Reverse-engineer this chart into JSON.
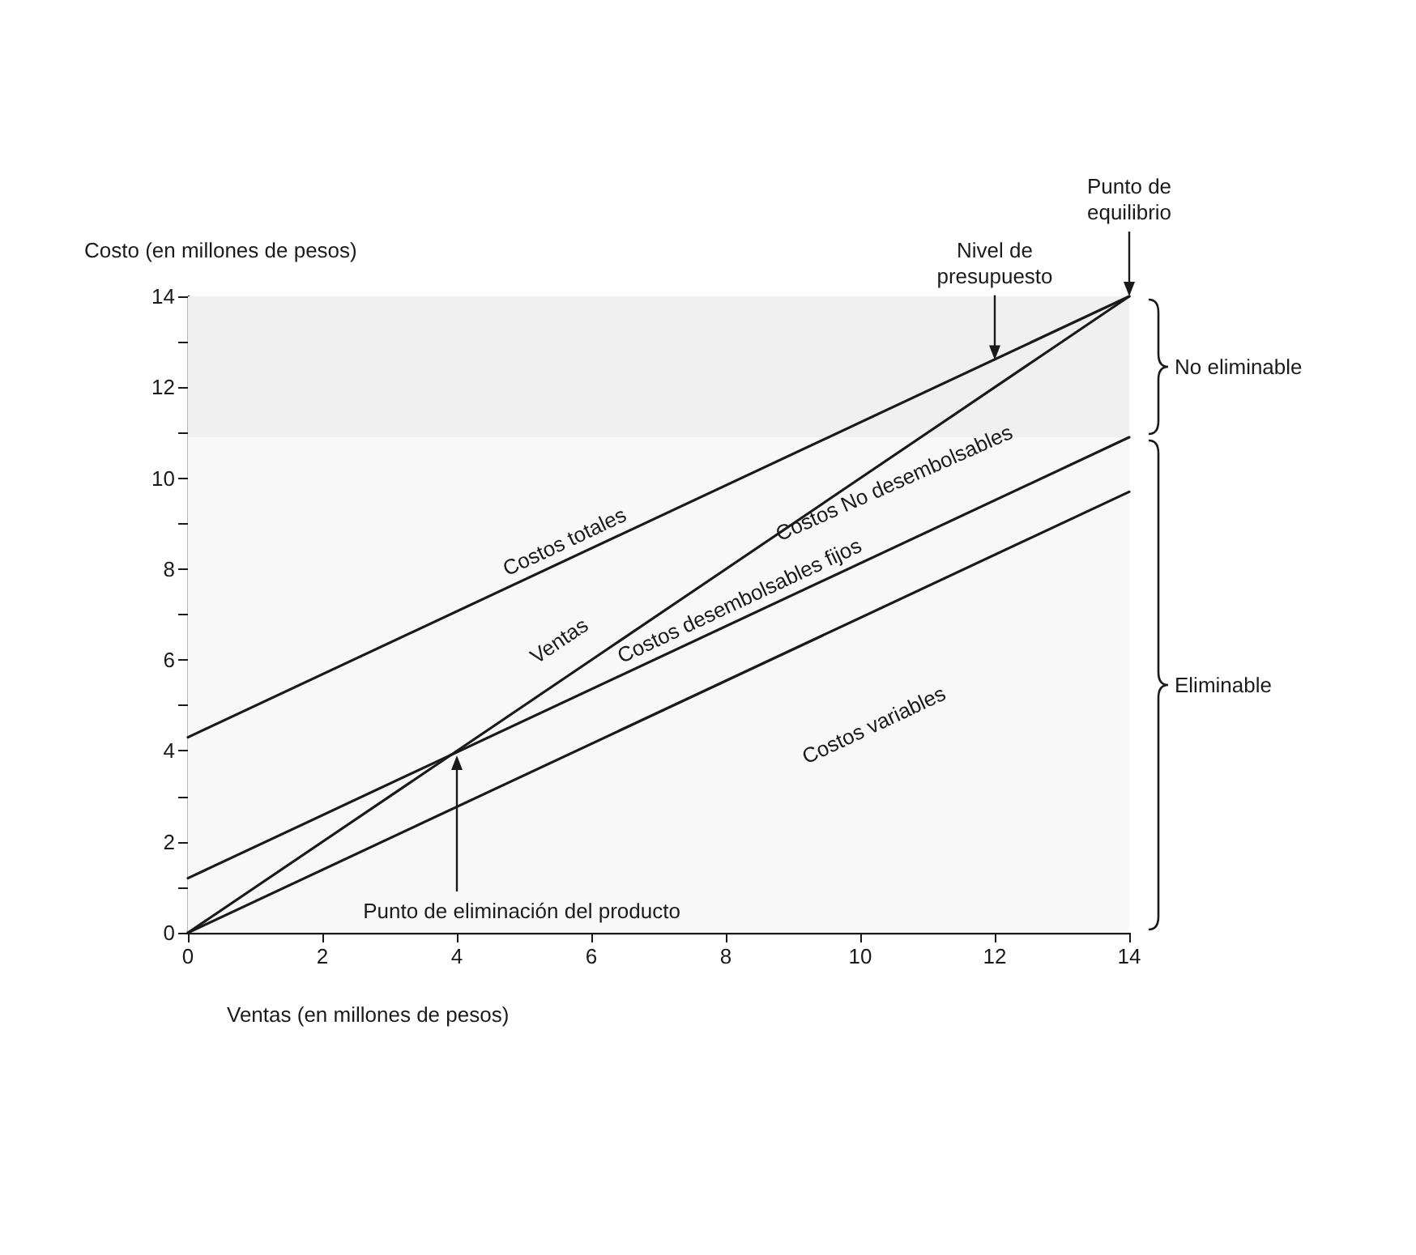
{
  "chart_data": {
    "type": "line",
    "xlabel": "Ventas (en millones de pesos)",
    "ylabel": "Costo (en millones de pesos)",
    "x": [
      0,
      14
    ],
    "series": [
      {
        "name": "Costos totales",
        "color": "#1a1a1a",
        "values": [
          4.3,
          14
        ]
      },
      {
        "name": "Ventas",
        "color": "#1a1a1a",
        "values": [
          0,
          14
        ]
      },
      {
        "name": "Costos desembolsables fijos",
        "color": "#1a1a1a",
        "values": [
          1.2,
          10.9
        ]
      },
      {
        "name": "Costos variables",
        "color": "#1a1a1a",
        "values": [
          0,
          9.7
        ]
      }
    ],
    "xlim": [
      0,
      14
    ],
    "xticks": [
      0,
      2,
      4,
      6,
      8,
      10,
      12,
      14
    ],
    "ylim": [
      0,
      14
    ],
    "yticks": [
      0,
      {
        "value": 1,
        "label": null
      },
      2,
      {
        "value": 3,
        "label": null
      },
      4,
      {
        "value": 5,
        "label": null
      },
      6,
      {
        "value": 7,
        "label": null
      },
      8,
      {
        "value": 9,
        "label": null
      },
      10,
      {
        "value": 11,
        "label": null
      },
      12,
      {
        "value": 13,
        "label": null
      },
      14
    ],
    "annotations": [
      "Costos No desembolsables",
      {
        "text": "Nivel de presupuesto",
        "x": 12,
        "y": 12.6
      },
      {
        "text": "Punto de equilibrio",
        "x": 14,
        "y": 14
      },
      {
        "text": "Punto de eliminación del producto",
        "x": 4,
        "y": 3.9
      }
    ],
    "bands": [
      {
        "axis": "y",
        "from": 10.9,
        "to": 14,
        "label": "No eliminable",
        "color": "#f0f0f0"
      },
      {
        "axis": "y",
        "from": 0,
        "to": 10.9,
        "label": "Eliminable",
        "color": "#f8f8f8"
      }
    ],
    "grid": false,
    "legend": false,
    "marker": "none",
    "line_style": "solid"
  }
}
